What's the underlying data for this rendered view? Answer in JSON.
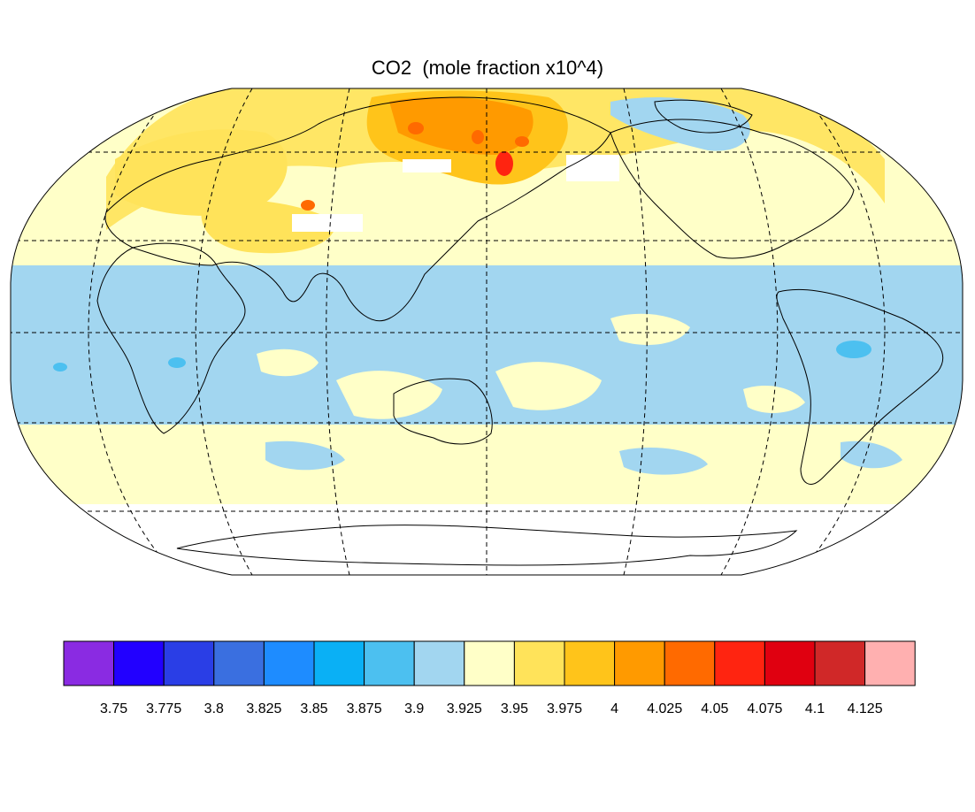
{
  "title": "CO2  (mole fraction x10^4)",
  "colorbar": {
    "colors": [
      "#8a2be2",
      "#2200ff",
      "#2a3ee6",
      "#3a6fe0",
      "#1e8cff",
      "#0ab0f5",
      "#4cc0f0",
      "#a2d6f0",
      "#ffffc8",
      "#ffe35a",
      "#ffc41a",
      "#ff9a00",
      "#ff6a00",
      "#ff2410",
      "#e00010",
      "#d02828",
      "#ffb0b0"
    ],
    "tick_labels": [
      "3.75",
      "3.775",
      "3.8",
      "3.825",
      "3.85",
      "3.875",
      "3.9",
      "3.925",
      "3.95",
      "3.975",
      "4",
      "4.025",
      "4.05",
      "4.075",
      "4.1",
      "4.125"
    ]
  },
  "map": {
    "projection": "robinson",
    "gridlines": "dashed",
    "dominant_colors": {
      "tropics": "#a2d6f0",
      "midlatitudes": "#ffffc8",
      "north_high": "#ffc41a",
      "hotspots": "#ff2410",
      "missing": "#ffffff"
    }
  }
}
